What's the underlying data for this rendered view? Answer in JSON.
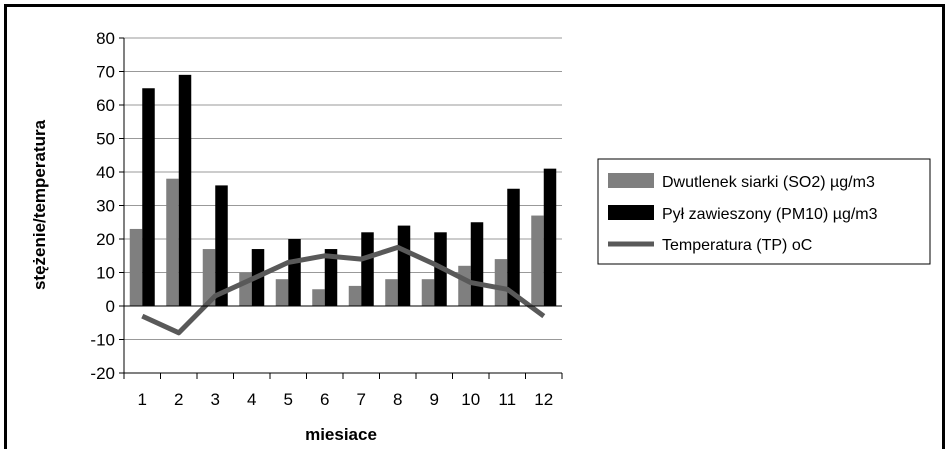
{
  "chart_data": {
    "type": "bar",
    "title": "",
    "xlabel": "miesiace",
    "ylabel": "stężenie/temperatura",
    "ylim": [
      -20,
      80
    ],
    "yticks": [
      -20,
      -10,
      0,
      10,
      20,
      30,
      40,
      50,
      60,
      70,
      80
    ],
    "grid": true,
    "legend_position": "right",
    "categories": [
      "1",
      "2",
      "3",
      "4",
      "5",
      "6",
      "7",
      "8",
      "9",
      "10",
      "11",
      "12"
    ],
    "series": [
      {
        "name": "Dwutlenek siarki (SO2) µg/m3",
        "kind": "bar",
        "color": "#7f7f7f",
        "values": [
          23,
          38,
          17,
          10,
          8,
          5,
          6,
          8,
          8,
          12,
          14,
          27
        ]
      },
      {
        "name": "Pył zawieszony (PM10) µg/m3",
        "kind": "bar",
        "color": "#000000",
        "values": [
          65,
          69,
          36,
          17,
          20,
          17,
          22,
          24,
          22,
          25,
          35,
          41
        ]
      },
      {
        "name": "Temperatura (TP) oC",
        "kind": "line",
        "color": "#595959",
        "values": [
          -3,
          -8,
          3,
          8,
          13,
          15,
          14,
          17.5,
          12.5,
          7,
          5,
          -3
        ]
      }
    ]
  }
}
